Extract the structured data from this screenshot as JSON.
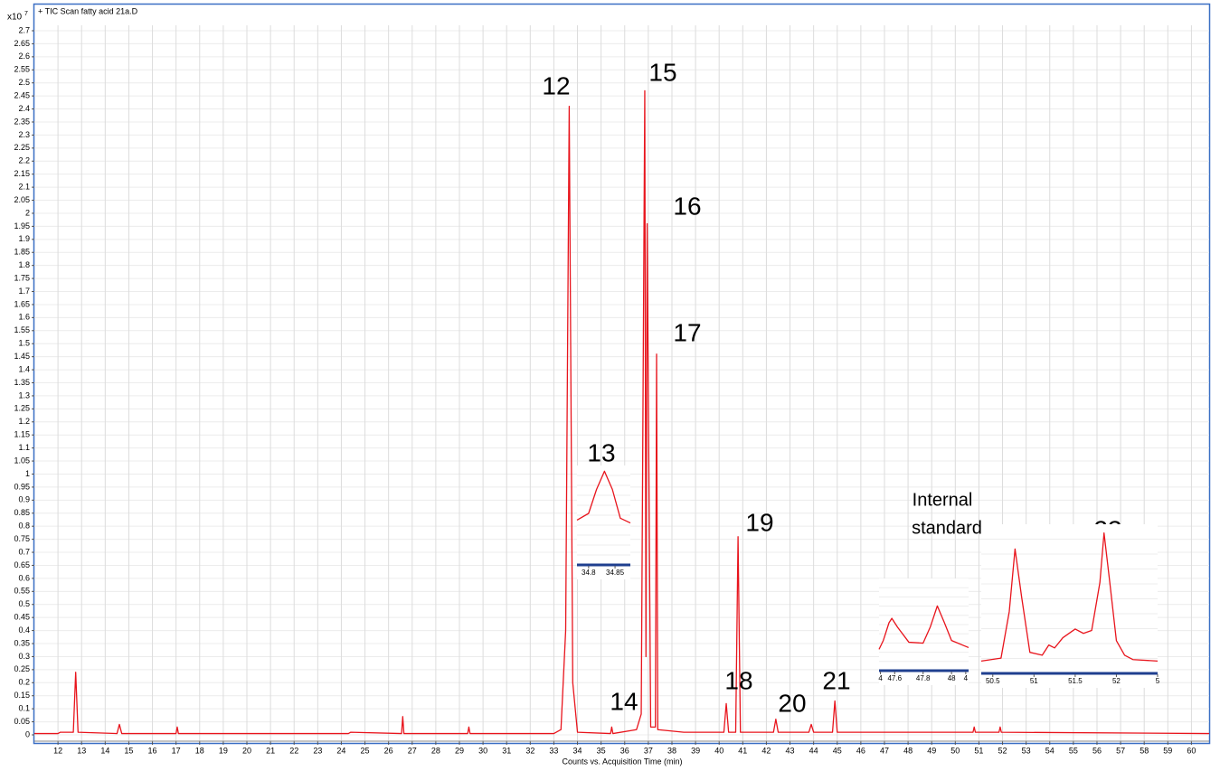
{
  "chart_data": [
    {
      "type": "line",
      "title": "+ TIC Scan fatty acid 21a.D",
      "xlabel": "Counts vs. Acquisition Time (min)",
      "y_scale_base": "x10",
      "y_scale_exponent": "7",
      "xlim": [
        11.0,
        60.75
      ],
      "xticks": [
        12,
        13,
        14,
        15,
        16,
        17,
        18,
        19,
        20,
        21,
        22,
        23,
        24,
        25,
        26,
        27,
        28,
        29,
        30,
        31,
        32,
        33,
        34,
        35,
        36,
        37,
        38,
        39,
        40,
        41,
        42,
        43,
        44,
        45,
        46,
        47,
        48,
        49,
        50,
        51,
        52,
        53,
        54,
        55,
        56,
        57,
        58,
        59,
        60
      ],
      "ylim": [
        0,
        2.7
      ],
      "yticks": [
        0,
        0.05,
        0.1,
        0.15,
        0.2,
        0.25,
        0.3,
        0.35,
        0.4,
        0.45,
        0.5,
        0.55,
        0.6,
        0.65,
        0.7,
        0.75,
        0.8,
        0.85,
        0.9,
        0.95,
        1,
        1.05,
        1.1,
        1.15,
        1.2,
        1.25,
        1.3,
        1.35,
        1.4,
        1.45,
        1.5,
        1.55,
        1.6,
        1.65,
        1.7,
        1.75,
        1.8,
        1.85,
        1.9,
        1.95,
        2,
        2.05,
        2.1,
        2.15,
        2.2,
        2.25,
        2.3,
        2.35,
        2.4,
        2.45,
        2.5,
        2.55,
        2.6,
        2.65,
        2.7
      ],
      "grid": true,
      "color": "#e8141c",
      "x": [
        11.0,
        12.0,
        12.1,
        12.65,
        12.75,
        12.85,
        14.5,
        14.6,
        14.7,
        17.0,
        17.05,
        17.1,
        24.3,
        24.4,
        26.55,
        26.6,
        26.65,
        29.35,
        29.4,
        29.45,
        33.0,
        33.3,
        33.5,
        33.65,
        33.8,
        34.0,
        35.4,
        35.45,
        35.5,
        36.5,
        36.7,
        36.85,
        36.9,
        36.95,
        37.1,
        37.3,
        37.35,
        37.4,
        38.5,
        40.2,
        40.3,
        40.4,
        40.7,
        40.8,
        40.9,
        42.3,
        42.4,
        42.5,
        43.8,
        43.9,
        44.0,
        44.8,
        44.9,
        45.0,
        50.75,
        50.8,
        50.85,
        51.85,
        51.9,
        51.95,
        60.75
      ],
      "values": [
        0.005,
        0.005,
        0.01,
        0.01,
        0.24,
        0.01,
        0.005,
        0.04,
        0.005,
        0.005,
        0.03,
        0.005,
        0.005,
        0.01,
        0.005,
        0.07,
        0.005,
        0.005,
        0.03,
        0.005,
        0.005,
        0.02,
        0.4,
        2.41,
        0.2,
        0.01,
        0.005,
        0.03,
        0.005,
        0.02,
        0.08,
        2.47,
        0.3,
        1.96,
        0.03,
        0.03,
        1.46,
        0.02,
        0.01,
        0.01,
        0.12,
        0.01,
        0.01,
        0.76,
        0.01,
        0.01,
        0.06,
        0.01,
        0.01,
        0.04,
        0.01,
        0.01,
        0.13,
        0.01,
        0.01,
        0.03,
        0.01,
        0.01,
        0.03,
        0.01,
        0.005
      ],
      "annotations": [
        "12",
        "13",
        "14",
        "15",
        "16",
        "17",
        "18",
        "19",
        "20",
        "21",
        "22",
        "23",
        "Internal",
        "standard"
      ]
    },
    {
      "type": "line",
      "xlim": [
        34.778,
        34.879
      ],
      "xticks": [
        34.8,
        34.85
      ],
      "ylim": [
        0,
        1
      ],
      "color": "#e8141c",
      "x": [
        34.778,
        34.8,
        34.815,
        34.83,
        34.845,
        34.86,
        34.879
      ],
      "values": [
        0.43,
        0.5,
        0.75,
        0.94,
        0.75,
        0.45,
        0.4
      ]
    },
    {
      "type": "line",
      "xlim": [
        47.49,
        48.12
      ],
      "xticks": [
        {
          "value": 47.5,
          "label": "4"
        },
        47.6,
        47.8,
        48,
        {
          "value": 48.1,
          "label": "4"
        }
      ],
      "ylim": [
        0,
        1
      ],
      "color": "#e8141c",
      "x": [
        47.49,
        47.52,
        47.56,
        47.58,
        47.62,
        47.7,
        47.8,
        47.85,
        47.9,
        47.95,
        48.0,
        48.12
      ],
      "values": [
        0.2,
        0.3,
        0.5,
        0.55,
        0.45,
        0.28,
        0.27,
        0.45,
        0.69,
        0.5,
        0.3,
        0.22
      ]
    },
    {
      "type": "line",
      "xlim": [
        50.36,
        52.5
      ],
      "xticks": [
        50.5,
        51,
        51.5,
        52,
        {
          "value": 52.5,
          "label": "5"
        }
      ],
      "ylim": [
        0,
        1
      ],
      "color": "#e8141c",
      "x": [
        50.36,
        50.6,
        50.7,
        50.77,
        50.85,
        50.95,
        51.1,
        51.18,
        51.25,
        51.35,
        51.5,
        51.6,
        51.7,
        51.8,
        51.85,
        51.92,
        52.0,
        52.1,
        52.2,
        52.5
      ],
      "values": [
        0.06,
        0.08,
        0.4,
        0.83,
        0.5,
        0.12,
        0.1,
        0.17,
        0.15,
        0.22,
        0.28,
        0.25,
        0.27,
        0.6,
        0.94,
        0.6,
        0.2,
        0.1,
        0.07,
        0.06
      ]
    }
  ]
}
